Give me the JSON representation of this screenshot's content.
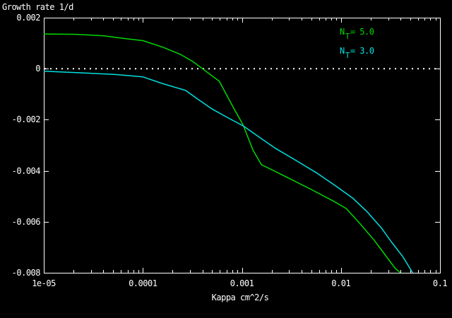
{
  "window": {
    "background": "#000000",
    "foreground": "#ffffff"
  },
  "chart_data": {
    "type": "line",
    "title": "",
    "ylabel": "Growth rate 1/d",
    "xlabel": "Kappa cm^2/s",
    "x_scale": "log",
    "xlim": [
      1e-05,
      0.1
    ],
    "ylim": [
      -0.008,
      0.002
    ],
    "grid": false,
    "legend_position": "top-right-inside",
    "x_ticks": [
      {
        "v": 1e-05,
        "label": "1e-05"
      },
      {
        "v": 0.0001,
        "label": "0.0001"
      },
      {
        "v": 0.001,
        "label": "0.001"
      },
      {
        "v": 0.01,
        "label": "0.01"
      },
      {
        "v": 0.1,
        "label": "0.1"
      }
    ],
    "y_ticks": [
      {
        "v": 0.002,
        "label": "0.002"
      },
      {
        "v": 0,
        "label": "0"
      },
      {
        "v": -0.002,
        "label": "-0.002"
      },
      {
        "v": -0.004,
        "label": "-0.004"
      },
      {
        "v": -0.006,
        "label": "-0.006"
      },
      {
        "v": -0.008,
        "label": "-0.008"
      }
    ],
    "zero_line": {
      "y": 0,
      "style": "dotted",
      "color": "#ffffff"
    },
    "series": [
      {
        "name": "N_T= 5.0",
        "legend_base": "N",
        "legend_sub": "T",
        "legend_rest": "= 5.0",
        "color": "#00d800",
        "points": [
          [
            1e-05,
            0.00136
          ],
          [
            2e-05,
            0.00135
          ],
          [
            4e-05,
            0.00129
          ],
          [
            7e-05,
            0.00117
          ],
          [
            0.0001,
            0.0011
          ],
          [
            0.00016,
            0.00084
          ],
          [
            0.00024,
            0.00056
          ],
          [
            0.00032,
            0.00028
          ],
          [
            0.0004,
            0.0
          ],
          [
            0.00059,
            -0.00049
          ],
          [
            0.00082,
            -0.00152
          ],
          [
            0.00103,
            -0.00221
          ],
          [
            0.00129,
            -0.00318
          ],
          [
            0.00157,
            -0.00376
          ],
          [
            0.0026,
            -0.00418
          ],
          [
            0.005,
            -0.00473
          ],
          [
            0.0082,
            -0.00517
          ],
          [
            0.0113,
            -0.00548
          ],
          [
            0.0157,
            -0.00609
          ],
          [
            0.0216,
            -0.00672
          ],
          [
            0.0277,
            -0.00728
          ],
          [
            0.0354,
            -0.00783
          ],
          [
            0.04,
            -0.008
          ]
        ]
      },
      {
        "name": "N_T= 3.0",
        "legend_base": "N",
        "legend_sub": "T",
        "legend_rest": "= 3.0",
        "color": "#00e0e0",
        "points": [
          [
            1e-05,
            -0.0001
          ],
          [
            3e-05,
            -0.00018
          ],
          [
            5.4e-05,
            -0.00023
          ],
          [
            0.0001,
            -0.00032
          ],
          [
            0.00016,
            -0.00059
          ],
          [
            0.00027,
            -0.00085
          ],
          [
            0.00036,
            -0.0012
          ],
          [
            0.0005,
            -0.00158
          ],
          [
            0.00069,
            -0.00188
          ],
          [
            0.00103,
            -0.00224
          ],
          [
            0.00157,
            -0.00274
          ],
          [
            0.0022,
            -0.00313
          ],
          [
            0.0036,
            -0.00362
          ],
          [
            0.0057,
            -0.00409
          ],
          [
            0.0088,
            -0.00459
          ],
          [
            0.0133,
            -0.00509
          ],
          [
            0.0185,
            -0.00562
          ],
          [
            0.0257,
            -0.00625
          ],
          [
            0.0326,
            -0.00681
          ],
          [
            0.042,
            -0.00736
          ],
          [
            0.053,
            -0.008
          ]
        ]
      }
    ]
  }
}
